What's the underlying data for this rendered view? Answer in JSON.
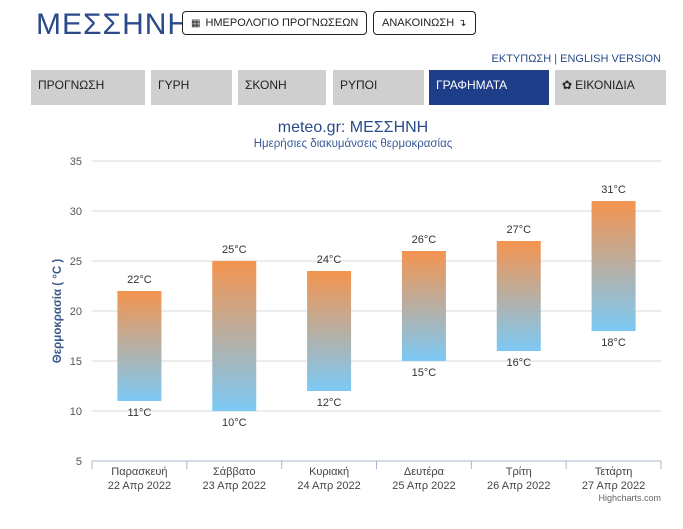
{
  "header": {
    "title": "ΜΕΣΣΗΝΗ",
    "calendar_button": {
      "label": "ΗΜΕΡΟΛΟΓΙΟ ΠΡΟΓΝΩΣΕΩΝ",
      "icon": "calendar-icon"
    },
    "announcement_button": {
      "label": "ΑΝΑΚΟΙΝΩΣΗ",
      "icon": "arrow-icon"
    },
    "print_link": "ΕΚΤΥΠΩΣΗ",
    "separator": "|",
    "english_link": "ENGLISH VERSION"
  },
  "tabs": [
    {
      "label": "ΠΡΟΓΝΩΣΗ",
      "active": false
    },
    {
      "label": "ΓΥΡΗ",
      "active": false
    },
    {
      "label": "ΣΚΟΝΗ",
      "active": false
    },
    {
      "label": "ΡΥΠΟΙ",
      "active": false
    },
    {
      "label": "ΓΡΑΦΗΜΑΤΑ",
      "active": true
    },
    {
      "label": "ΕΙΚΟΝΙΔΙΑ",
      "active": false,
      "icon": "gear-icon"
    }
  ],
  "colors": {
    "active_tab": "#1f3e8a",
    "bar_top": "#f4944f",
    "bar_bottom": "#7cc9f5",
    "title": "#2a4a8a"
  },
  "chart_data": {
    "type": "bar",
    "title": "meteo.gr: ΜΕΣΣΗΝΗ",
    "subtitle": "Ημερήσιες διακυμάνσεις θερμοκρασίας",
    "ylabel": "Θερμοκρασία ( °C )",
    "ylim": [
      5,
      35
    ],
    "yticks": [
      5,
      10,
      15,
      20,
      25,
      30,
      35
    ],
    "grid": true,
    "categories": [
      {
        "day": "Παρασκευή",
        "date": "22 Απρ 2022"
      },
      {
        "day": "Σάββατο",
        "date": "23 Απρ 2022"
      },
      {
        "day": "Κυριακή",
        "date": "24 Απρ 2022"
      },
      {
        "day": "Δευτέρα",
        "date": "25 Απρ 2022"
      },
      {
        "day": "Τρίτη",
        "date": "26 Απρ 2022"
      },
      {
        "day": "Τετάρτη",
        "date": "27 Απρ 2022"
      }
    ],
    "min": [
      11,
      10,
      12,
      15,
      16,
      18
    ],
    "max": [
      22,
      25,
      24,
      26,
      27,
      31
    ],
    "unit": "°C",
    "credit": "Highcharts.com"
  }
}
